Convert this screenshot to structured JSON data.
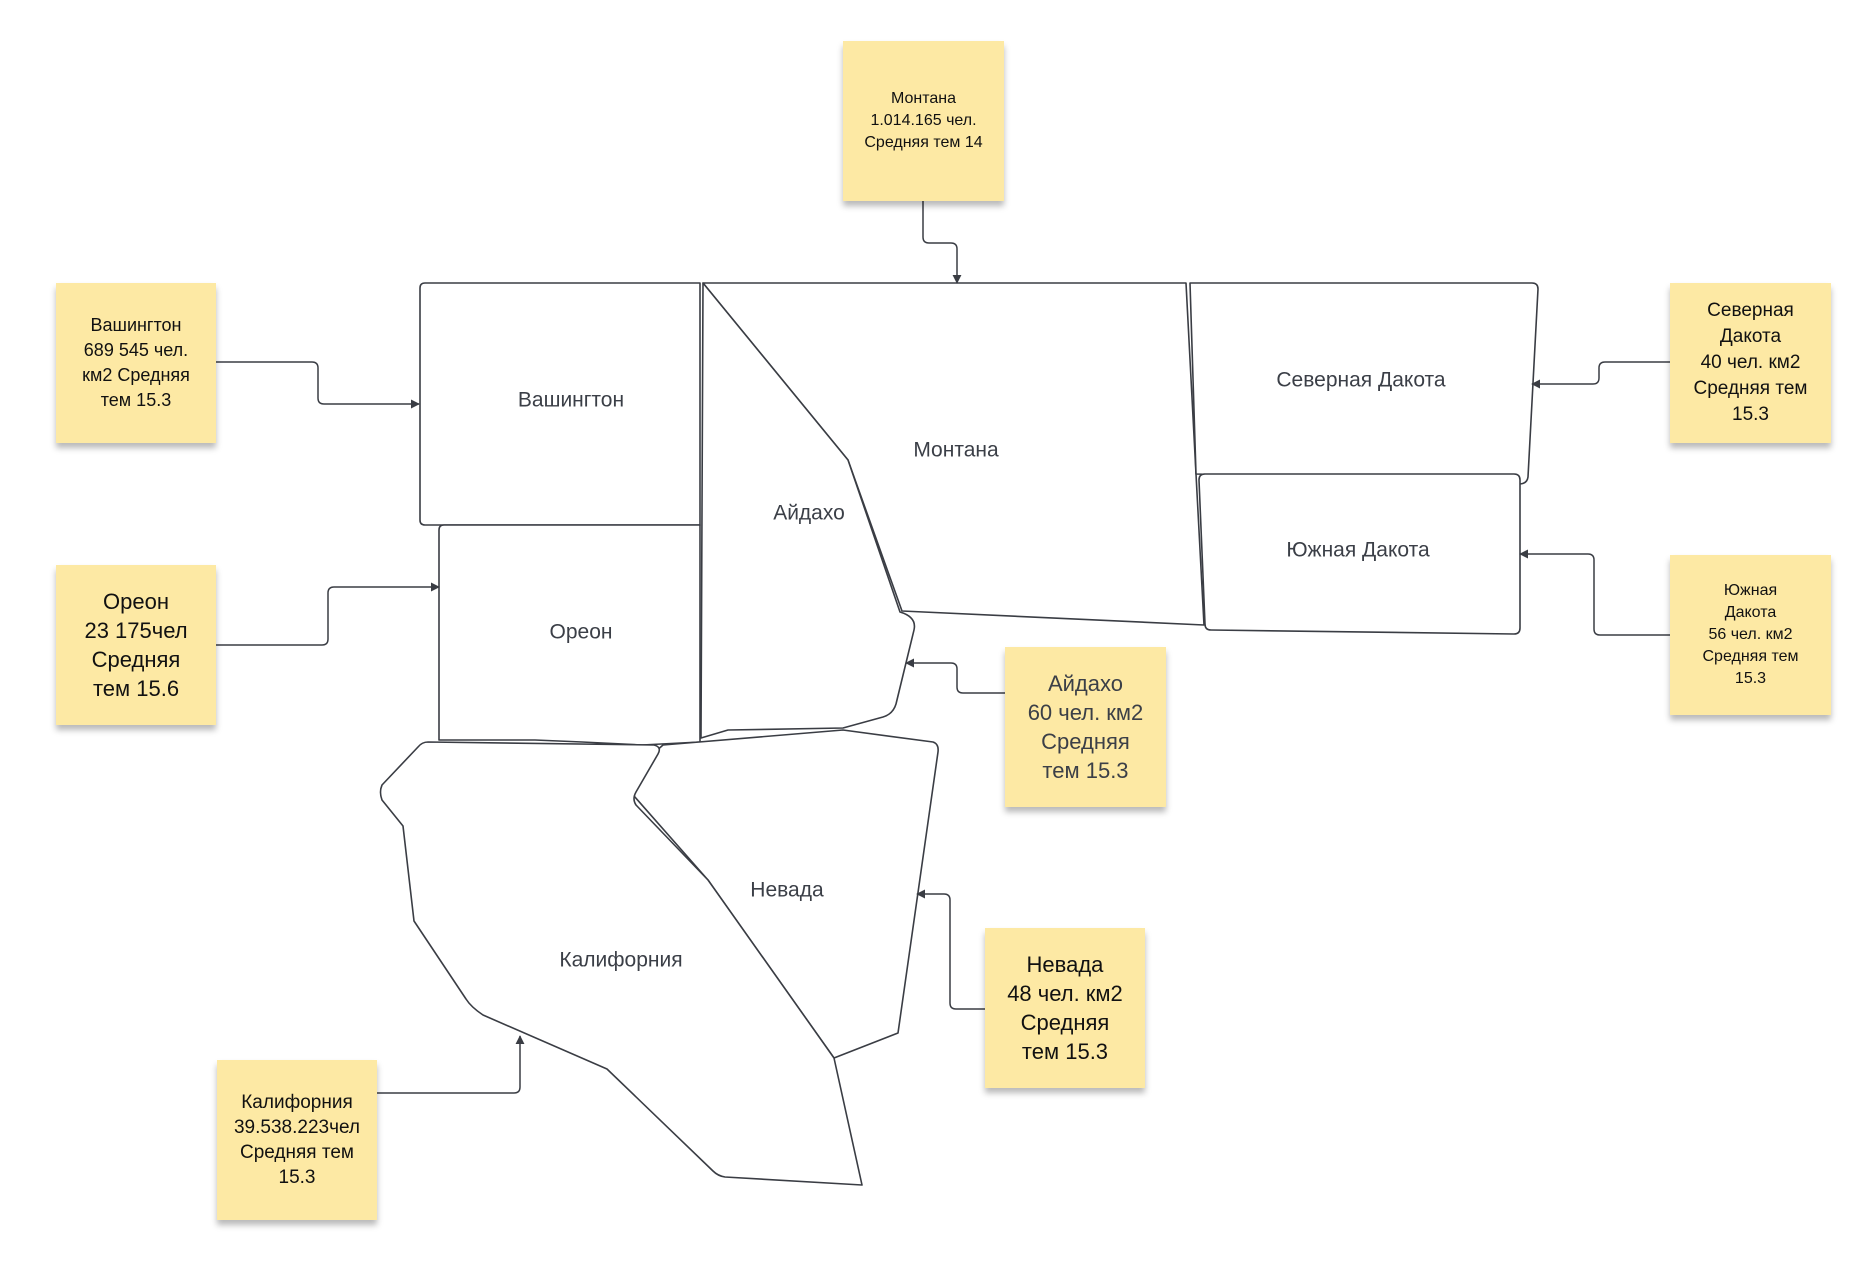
{
  "colors": {
    "note_background": "#fde9a4",
    "outline": "#3a3d44",
    "region_fill": "#ffffff",
    "label_text": "#3b3f47"
  },
  "regions": {
    "washington": "Вашингтон",
    "idaho": "Айдахо",
    "montana": "Монтана",
    "north_dakota": "Северная Дакота",
    "south_dakota": "Южная Дакота",
    "oregon": "Ореон",
    "nevada": "Невада",
    "california": "Калифорния"
  },
  "notes": {
    "montana": "Монтана\n1.014.165 чел.\nСредняя тем 14",
    "washington": "Вашингтон\n689 545 чел.\nкм2 Средняя\nтем 15.3",
    "north_dakota": "Северная\nДакота\n40 чел. км2\nСредняя тем\n15.3",
    "oregon": "Ореон\n23 175чел\nСредняя\nтем 15.6",
    "south_dakota": "Южная\nДакота\n56 чел. км2\nСредняя тем\n15.3",
    "idaho": "Айдахо\n60 чел. км2\nСредняя\nтем 15.3",
    "nevada": "Невада\n48 чел. км2\nСредняя\nтем 15.3",
    "california": "Калифорния\n39.538.223чел\nСредняя тем\n15.3"
  }
}
